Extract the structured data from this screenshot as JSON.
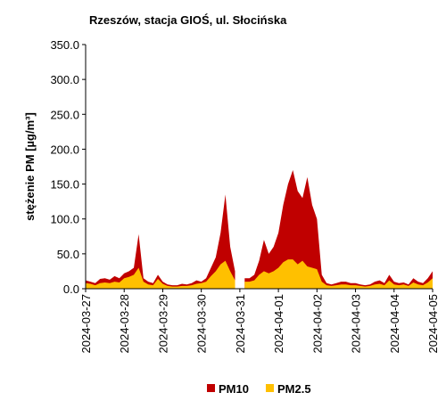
{
  "chart_data": {
    "type": "area",
    "title": "Rzeszów, stacja GIOŚ, ul. Słocińska",
    "y_label": "stężenie PM [µg/m³]",
    "categories": [
      "2024-03-27",
      null,
      null,
      null,
      null,
      null,
      null,
      null,
      "2024-03-28",
      null,
      null,
      null,
      null,
      null,
      null,
      null,
      "2024-03-29",
      null,
      null,
      null,
      null,
      null,
      null,
      null,
      "2024-03-30",
      null,
      null,
      null,
      null,
      null,
      null,
      null,
      "2024-03-31",
      null,
      null,
      null,
      null,
      null,
      null,
      null,
      "2024-04-01",
      null,
      null,
      null,
      null,
      null,
      null,
      null,
      "2024-04-02",
      null,
      null,
      null,
      null,
      null,
      null,
      null,
      "2024-04-03",
      null,
      null,
      null,
      null,
      null,
      null,
      null,
      "2024-04-04",
      null,
      null,
      null,
      null,
      null,
      null,
      null,
      "2024-04-05"
    ],
    "series": [
      {
        "name": "PM10",
        "color": "#c00000",
        "values": [
          12,
          10,
          8,
          14,
          15,
          13,
          18,
          15,
          22,
          25,
          30,
          78,
          15,
          10,
          8,
          20,
          10,
          6,
          5,
          5,
          7,
          6,
          8,
          12,
          10,
          15,
          30,
          45,
          80,
          135,
          60,
          25,
          null,
          15,
          15,
          20,
          40,
          70,
          50,
          60,
          80,
          120,
          150,
          170,
          140,
          130,
          160,
          120,
          100,
          20,
          8,
          6,
          8,
          10,
          10,
          8,
          8,
          6,
          5,
          6,
          10,
          12,
          8,
          20,
          10,
          8,
          9,
          6,
          15,
          10,
          8,
          15,
          25
        ]
      },
      {
        "name": "PM2.5",
        "color": "#ffc000",
        "values": [
          8,
          7,
          5,
          8,
          9,
          8,
          10,
          9,
          15,
          17,
          20,
          30,
          10,
          6,
          5,
          14,
          7,
          4,
          3,
          3,
          4,
          4,
          5,
          7,
          8,
          10,
          18,
          25,
          35,
          40,
          25,
          12,
          null,
          10,
          10,
          12,
          20,
          25,
          22,
          25,
          30,
          38,
          42,
          42,
          35,
          40,
          32,
          30,
          28,
          10,
          5,
          4,
          5,
          6,
          6,
          5,
          5,
          4,
          3,
          4,
          6,
          7,
          5,
          12,
          6,
          5,
          6,
          4,
          9,
          6,
          5,
          9,
          15
        ]
      }
    ],
    "ylim": [
      0,
      350
    ],
    "yticks": [
      {
        "value": 0,
        "label": "0.0"
      },
      {
        "value": 50,
        "label": "50.0"
      },
      {
        "value": 100,
        "label": "100.0"
      },
      {
        "value": 150,
        "label": "150.0"
      },
      {
        "value": 200,
        "label": "200.0"
      },
      {
        "value": 250,
        "label": "250.0"
      },
      {
        "value": 300,
        "label": "300.0"
      },
      {
        "value": 350,
        "label": "350.0"
      }
    ],
    "grid": false,
    "legend": "bottom"
  }
}
